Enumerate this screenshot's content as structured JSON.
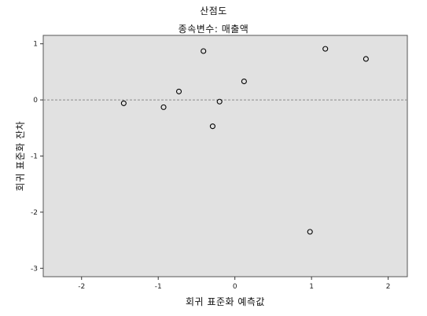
{
  "chart_data": {
    "type": "scatter",
    "title": "산점도",
    "subtitle": "종속변수: 매출액",
    "xlabel": "회귀 표준화 예측값",
    "ylabel": "회귀 표준화 잔차",
    "xlim": [
      -2.5,
      2.25
    ],
    "ylim": [
      -3.15,
      1.15
    ],
    "xticks": [
      -2,
      -1,
      0,
      1,
      2
    ],
    "yticks": [
      -3,
      -2,
      -1,
      0,
      1
    ],
    "xtick_labels": [
      "-2",
      "-1",
      "0",
      "1",
      "2"
    ],
    "ytick_labels": [
      "-3",
      "-2",
      "-1",
      "0",
      "1"
    ],
    "reference_line": {
      "y": 0,
      "style": "dashed"
    },
    "grid": false,
    "plot_background": "#e1e1e1",
    "marker": "open-circle",
    "points": [
      {
        "x": -1.45,
        "y": -0.06
      },
      {
        "x": -0.93,
        "y": -0.13
      },
      {
        "x": -0.73,
        "y": 0.15
      },
      {
        "x": -0.41,
        "y": 0.87
      },
      {
        "x": -0.29,
        "y": -0.47
      },
      {
        "x": -0.2,
        "y": -0.03
      },
      {
        "x": 0.12,
        "y": 0.33
      },
      {
        "x": 0.98,
        "y": -2.35
      },
      {
        "x": 1.18,
        "y": 0.91
      },
      {
        "x": 1.71,
        "y": 0.73
      }
    ]
  }
}
